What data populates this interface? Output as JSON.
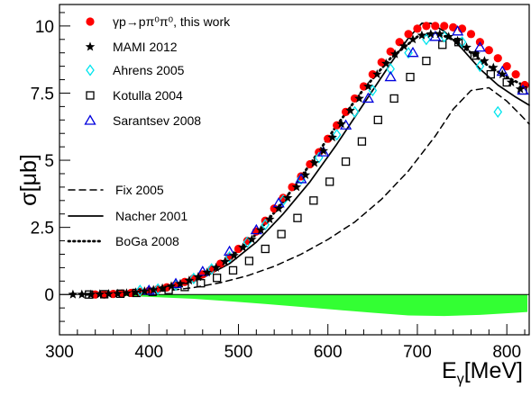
{
  "chart_data": {
    "type": "scatter",
    "title": "",
    "xlabel_main": "E",
    "xlabel_sub": "γ",
    "xlabel_unit": "[MeV]",
    "ylabel": "σ[μb]",
    "xlim": [
      300,
      825
    ],
    "ylim": [
      -1.5,
      10.8
    ],
    "x_ticks": [
      300,
      400,
      500,
      600,
      700,
      800
    ],
    "y_ticks": [
      0,
      2.5,
      5,
      7.5,
      10
    ],
    "y_tick_labels": [
      "0",
      "2.5",
      "5",
      "7.5",
      "10"
    ],
    "legend_position": "upper-left",
    "series": [
      {
        "name": "γp→pπ⁰π⁰, this work",
        "marker": "filled-circle",
        "color": "#ff0000",
        "x": [
          340,
          350,
          360,
          370,
          380,
          390,
          400,
          410,
          420,
          430,
          440,
          450,
          460,
          470,
          480,
          490,
          500,
          510,
          520,
          530,
          540,
          550,
          560,
          570,
          580,
          590,
          600,
          610,
          620,
          630,
          640,
          650,
          660,
          670,
          680,
          690,
          700,
          710,
          720,
          730,
          740,
          750,
          760,
          770,
          780,
          790,
          800,
          810,
          820
        ],
        "y": [
          0.0,
          0.0,
          0.02,
          0.04,
          0.06,
          0.1,
          0.14,
          0.2,
          0.27,
          0.36,
          0.47,
          0.6,
          0.75,
          0.93,
          1.15,
          1.4,
          1.7,
          2.0,
          2.35,
          2.75,
          3.2,
          3.6,
          4.0,
          4.4,
          4.85,
          5.3,
          5.8,
          6.3,
          6.8,
          7.3,
          7.75,
          8.2,
          8.65,
          9.05,
          9.4,
          9.7,
          9.9,
          10.0,
          10.0,
          10.0,
          9.95,
          9.9,
          9.7,
          9.4,
          9.1,
          8.8,
          8.5,
          8.2,
          7.8
        ]
      },
      {
        "name": "MAMI 2012",
        "marker": "star",
        "color": "#000000",
        "x": [
          315,
          325,
          335,
          345,
          355,
          365,
          375,
          385,
          395,
          405,
          415,
          425,
          435,
          445,
          455,
          465,
          475,
          485,
          495,
          505,
          515,
          525,
          535,
          545,
          555,
          565,
          575,
          585,
          595,
          605,
          615,
          625,
          635,
          645,
          655,
          665,
          675,
          685,
          695,
          705,
          715,
          725,
          735,
          745,
          755,
          765,
          775,
          785,
          795,
          805,
          815
        ],
        "y": [
          0.0,
          0.0,
          0.0,
          0.01,
          0.02,
          0.03,
          0.05,
          0.08,
          0.12,
          0.17,
          0.23,
          0.31,
          0.4,
          0.52,
          0.65,
          0.82,
          1.0,
          1.22,
          1.45,
          1.75,
          2.05,
          2.4,
          2.8,
          3.2,
          3.6,
          4.0,
          4.45,
          4.9,
          5.35,
          5.85,
          6.35,
          6.85,
          7.3,
          7.75,
          8.2,
          8.6,
          8.95,
          9.25,
          9.5,
          9.65,
          9.7,
          9.7,
          9.6,
          9.45,
          9.2,
          8.95,
          8.7,
          8.45,
          8.2,
          7.9,
          7.65
        ]
      },
      {
        "name": "Ahrens 2005",
        "marker": "open-diamond",
        "color": "#00e5ee",
        "x": [
          390,
          410,
          430,
          450,
          470,
          490,
          510,
          530,
          550,
          570,
          590,
          610,
          630,
          650,
          670,
          690,
          710,
          730,
          750,
          770,
          790
        ],
        "y": [
          0.15,
          0.2,
          0.35,
          0.6,
          0.95,
          1.4,
          1.95,
          2.6,
          3.5,
          4.3,
          5.1,
          5.95,
          6.8,
          7.6,
          8.4,
          9.0,
          9.5,
          9.6,
          9.4,
          8.5,
          6.8
        ]
      },
      {
        "name": "Kotulla 2004",
        "marker": "open-square",
        "color": "#000000",
        "x": [
          333,
          350,
          368,
          386,
          404,
          422,
          440,
          458,
          476,
          494,
          512,
          530,
          548,
          566,
          584,
          602,
          620,
          638,
          656,
          674,
          692,
          710,
          728,
          746,
          764,
          782,
          800,
          818
        ],
        "y": [
          0.0,
          0.01,
          0.03,
          0.06,
          0.1,
          0.17,
          0.28,
          0.42,
          0.62,
          0.9,
          1.25,
          1.7,
          2.25,
          2.85,
          3.5,
          4.2,
          4.95,
          5.7,
          6.5,
          7.3,
          8.1,
          8.7,
          9.3,
          9.4,
          8.9,
          8.2,
          7.9,
          7.6
        ]
      },
      {
        "name": "Sarantsev 2008",
        "marker": "open-triangle",
        "color": "#0000dd",
        "x": [
          400,
          430,
          460,
          490,
          520,
          545,
          570,
          595,
          620,
          645,
          670,
          695,
          720,
          745,
          770,
          795,
          818
        ],
        "y": [
          0.15,
          0.4,
          0.85,
          1.6,
          2.4,
          3.4,
          4.3,
          5.3,
          6.3,
          7.3,
          8.1,
          9.0,
          9.6,
          9.8,
          9.2,
          8.3,
          7.6
        ]
      },
      {
        "name": "Fix 2005",
        "marker": "dashed-line",
        "color": "#000000",
        "x": [
          330,
          360,
          390,
          420,
          450,
          480,
          510,
          540,
          570,
          600,
          630,
          660,
          690,
          720,
          740,
          760,
          780,
          800,
          815,
          825
        ],
        "y": [
          0.0,
          0.02,
          0.06,
          0.14,
          0.26,
          0.44,
          0.7,
          1.05,
          1.5,
          2.05,
          2.7,
          3.55,
          4.6,
          5.9,
          6.9,
          7.6,
          7.7,
          7.2,
          6.7,
          6.35
        ]
      },
      {
        "name": "Nacher 2001",
        "marker": "solid-line",
        "color": "#000000",
        "x": [
          330,
          370,
          400,
          430,
          460,
          490,
          520,
          550,
          580,
          610,
          640,
          670,
          690,
          705,
          715,
          730,
          750,
          770,
          790,
          810,
          825
        ],
        "y": [
          0.0,
          0.04,
          0.12,
          0.3,
          0.62,
          1.15,
          1.95,
          3.0,
          4.2,
          5.6,
          7.1,
          8.6,
          9.55,
          10.1,
          10.1,
          9.8,
          9.15,
          8.4,
          7.8,
          7.35,
          7.05
        ]
      },
      {
        "name": "BoGa 2008",
        "marker": "dotted-line",
        "color": "#000000",
        "x": [
          330,
          370,
          400,
          430,
          460,
          490,
          520,
          550,
          580,
          610,
          640,
          670,
          700,
          720,
          740,
          760,
          780,
          800,
          815
        ],
        "y": [
          0.0,
          0.05,
          0.16,
          0.38,
          0.75,
          1.35,
          2.25,
          3.45,
          4.85,
          6.3,
          7.65,
          8.8,
          9.6,
          9.75,
          9.5,
          9.0,
          8.5,
          8.1,
          7.85
        ]
      },
      {
        "name": "",
        "marker": "filled-band",
        "color": "#33ff33",
        "x": [
          330,
          370,
          410,
          450,
          490,
          530,
          570,
          610,
          650,
          690,
          730,
          770,
          810,
          823
        ],
        "y": [
          -0.02,
          -0.05,
          -0.1,
          -0.16,
          -0.25,
          -0.35,
          -0.46,
          -0.57,
          -0.68,
          -0.78,
          -0.8,
          -0.76,
          -0.68,
          -0.65
        ]
      }
    ]
  }
}
